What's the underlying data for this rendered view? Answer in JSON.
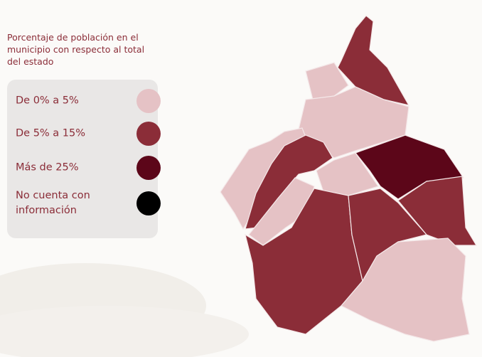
{
  "legend": {
    "title": "Porcentaje de población en el municipio con respecto al total del estado",
    "items": [
      {
        "label": "De 0% a 5%",
        "color": "#e5c2c5"
      },
      {
        "label": "De 5% a 15%",
        "color": "#8b2d38"
      },
      {
        "label": "Más de 25%",
        "color": "#5c0619"
      },
      {
        "label": "No cuenta con información",
        "color": "#000000"
      }
    ]
  }
}
